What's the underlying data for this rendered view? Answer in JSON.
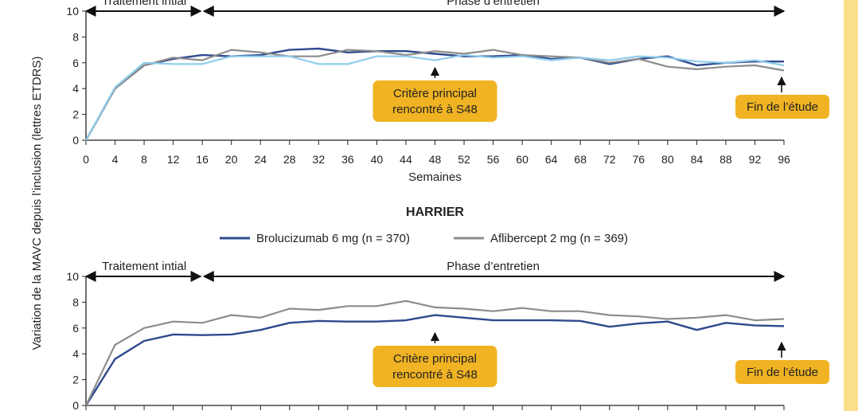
{
  "ylabel": "Variation de la MAVC depuis l’inclusion (lettres ETDRS)",
  "colors": {
    "brolucizumab": "#2e4a8e",
    "aflibercept": "#8c8c8c",
    "aflibercept_light": "#8fcdea",
    "callout": "#f0b323",
    "axis": "#222222"
  },
  "chart_data": [
    {
      "type": "line",
      "phase_labels": {
        "initial": "Traitement intial",
        "maintenance": "Phase d’entretien"
      },
      "xlabel": "Semaines",
      "xlim": [
        0,
        96
      ],
      "ylim": [
        0,
        10
      ],
      "yticks": [
        0,
        2,
        4,
        6,
        8,
        10
      ],
      "x": [
        0,
        4,
        8,
        12,
        16,
        20,
        24,
        28,
        32,
        36,
        40,
        44,
        48,
        52,
        56,
        60,
        64,
        68,
        72,
        76,
        80,
        84,
        88,
        92,
        96
      ],
      "series": [
        {
          "color_key": "brolucizumab",
          "values": [
            0,
            4.0,
            5.8,
            6.3,
            6.6,
            6.5,
            6.6,
            7.0,
            7.1,
            6.8,
            6.9,
            6.9,
            6.7,
            6.5,
            6.5,
            6.6,
            6.3,
            6.4,
            5.9,
            6.3,
            6.5,
            5.8,
            6.0,
            6.1,
            6.1
          ]
        },
        {
          "color_key": "aflibercept",
          "values": [
            0,
            4.0,
            5.8,
            6.4,
            6.2,
            7.0,
            6.8,
            6.5,
            6.5,
            7.0,
            6.9,
            6.6,
            6.9,
            6.7,
            7.0,
            6.6,
            6.5,
            6.4,
            6.0,
            6.3,
            5.7,
            5.5,
            5.7,
            5.8,
            5.4
          ]
        },
        {
          "color_key": "aflibercept_light",
          "values": [
            0,
            4.1,
            6.0,
            5.9,
            5.9,
            6.5,
            6.5,
            6.5,
            5.9,
            5.9,
            6.5,
            6.5,
            6.2,
            6.6,
            6.4,
            6.5,
            6.2,
            6.4,
            6.2,
            6.5,
            6.4,
            6.1,
            6.0,
            6.2,
            5.8
          ]
        }
      ],
      "annotations": {
        "primary": "Critère principal\nrencontré à S48",
        "primary_x": 48,
        "end": "Fin de l’étude",
        "end_x": 96
      }
    },
    {
      "type": "line",
      "title": "HARRIER",
      "legend": [
        {
          "name": "Brolucizumab 6 mg (n = 370)",
          "color_key": "brolucizumab"
        },
        {
          "name": "Aflibercept 2 mg (n = 369)",
          "color_key": "aflibercept"
        }
      ],
      "phase_labels": {
        "initial": "Traitement intial",
        "maintenance": "Phase d’entretien"
      },
      "xlim": [
        0,
        96
      ],
      "ylim": [
        0,
        10
      ],
      "yticks": [
        0,
        2,
        4,
        6,
        8,
        10
      ],
      "x": [
        0,
        4,
        8,
        12,
        16,
        20,
        24,
        28,
        32,
        36,
        40,
        44,
        48,
        52,
        56,
        60,
        64,
        68,
        72,
        76,
        80,
        84,
        88,
        92,
        96
      ],
      "series": [
        {
          "name": "Brolucizumab 6 mg (n = 370)",
          "color_key": "brolucizumab",
          "values": [
            0,
            3.6,
            5.0,
            5.5,
            5.45,
            5.5,
            5.85,
            6.4,
            6.55,
            6.5,
            6.5,
            6.6,
            7.0,
            6.8,
            6.6,
            6.6,
            6.6,
            6.55,
            6.1,
            6.35,
            6.5,
            5.85,
            6.4,
            6.2,
            6.15
          ]
        },
        {
          "name": "Aflibercept 2 mg (n = 369)",
          "color_key": "aflibercept",
          "values": [
            0,
            4.7,
            6.0,
            6.5,
            6.4,
            7.0,
            6.8,
            7.5,
            7.4,
            7.7,
            7.7,
            8.1,
            7.6,
            7.5,
            7.3,
            7.55,
            7.3,
            7.3,
            7.0,
            6.9,
            6.7,
            6.8,
            7.0,
            6.6,
            6.7
          ]
        }
      ],
      "annotations": {
        "primary": "Critère principal\nrencontré à S48",
        "primary_x": 48,
        "end": "Fin de l’étude",
        "end_x": 96
      }
    }
  ]
}
